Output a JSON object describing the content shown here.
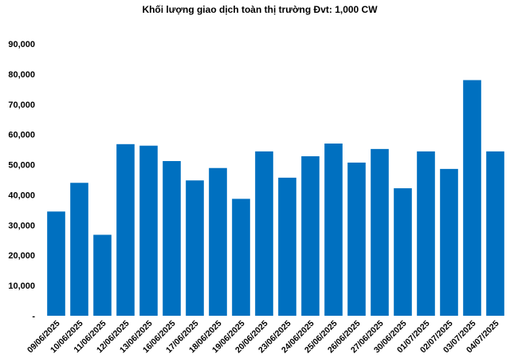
{
  "chart_data": {
    "type": "bar",
    "title": "Khối lượng giao dịch toàn thị trường Đvt: 1,000 CW",
    "xlabel": "",
    "ylabel": "",
    "ylim": [
      0,
      90000
    ],
    "yticks": [
      {
        "value": 0,
        "label": "-"
      },
      {
        "value": 10000,
        "label": "10,000"
      },
      {
        "value": 20000,
        "label": "20,000"
      },
      {
        "value": 30000,
        "label": "30,000"
      },
      {
        "value": 40000,
        "label": "40,000"
      },
      {
        "value": 50000,
        "label": "50,000"
      },
      {
        "value": 60000,
        "label": "60,000"
      },
      {
        "value": 70000,
        "label": "70,000"
      },
      {
        "value": 80000,
        "label": "80,000"
      },
      {
        "value": 90000,
        "label": "90,000"
      }
    ],
    "grid": false,
    "legend": "none",
    "bar_color": "#0070C0",
    "categories": [
      "09/06/2025",
      "10/06/2025",
      "11/06/2025",
      "12/06/2025",
      "13/06/2025",
      "16/06/2025",
      "17/06/2025",
      "18/06/2025",
      "19/06/2025",
      "20/06/2025",
      "23/06/2025",
      "24/06/2025",
      "25/06/2025",
      "26/06/2025",
      "27/06/2025",
      "30/06/2025",
      "01/07/2025",
      "02/07/2025",
      "03/07/2025",
      "04/07/2025"
    ],
    "values": [
      34500,
      44000,
      26800,
      56800,
      56300,
      51200,
      44800,
      48900,
      38700,
      54400,
      45700,
      52800,
      57000,
      50700,
      55200,
      42200,
      54400,
      48600,
      78000,
      54400
    ]
  }
}
